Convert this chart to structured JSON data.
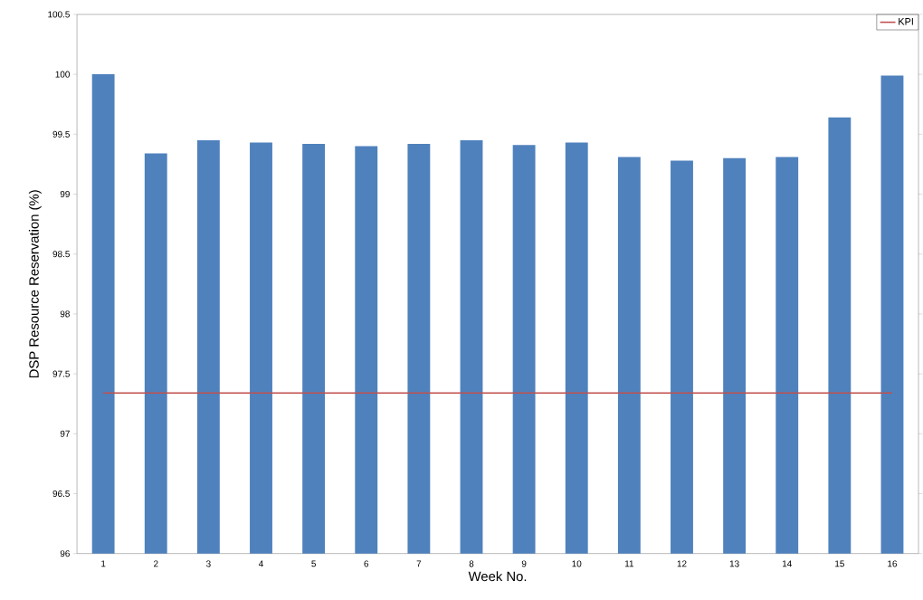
{
  "chart_data": {
    "type": "bar",
    "xlabel": "Week No.",
    "ylabel": "DSP Resource Reservation (%)",
    "categories": [
      "1",
      "2",
      "3",
      "4",
      "5",
      "6",
      "7",
      "8",
      "9",
      "10",
      "11",
      "12",
      "13",
      "14",
      "15",
      "16"
    ],
    "series": [
      {
        "color": "#4f81bd",
        "values": [
          100.0,
          99.34,
          99.45,
          99.43,
          99.42,
          99.4,
          99.42,
          99.45,
          99.41,
          99.43,
          99.31,
          99.28,
          99.3,
          99.31,
          99.64,
          99.99
        ]
      },
      {
        "type": "line",
        "name": "KPI",
        "color": "#c0504d",
        "values": [
          97.34,
          97.34,
          97.34,
          97.34,
          97.34,
          97.34,
          97.34,
          97.34,
          97.34,
          97.34,
          97.34,
          97.34,
          97.34,
          97.34,
          97.34,
          97.34
        ]
      }
    ],
    "ylim": [
      96,
      100.5
    ],
    "yticks": [
      96,
      96.5,
      97,
      97.5,
      98,
      98.5,
      99,
      99.5,
      100,
      100.5
    ],
    "grid": false,
    "legend": "top right"
  }
}
